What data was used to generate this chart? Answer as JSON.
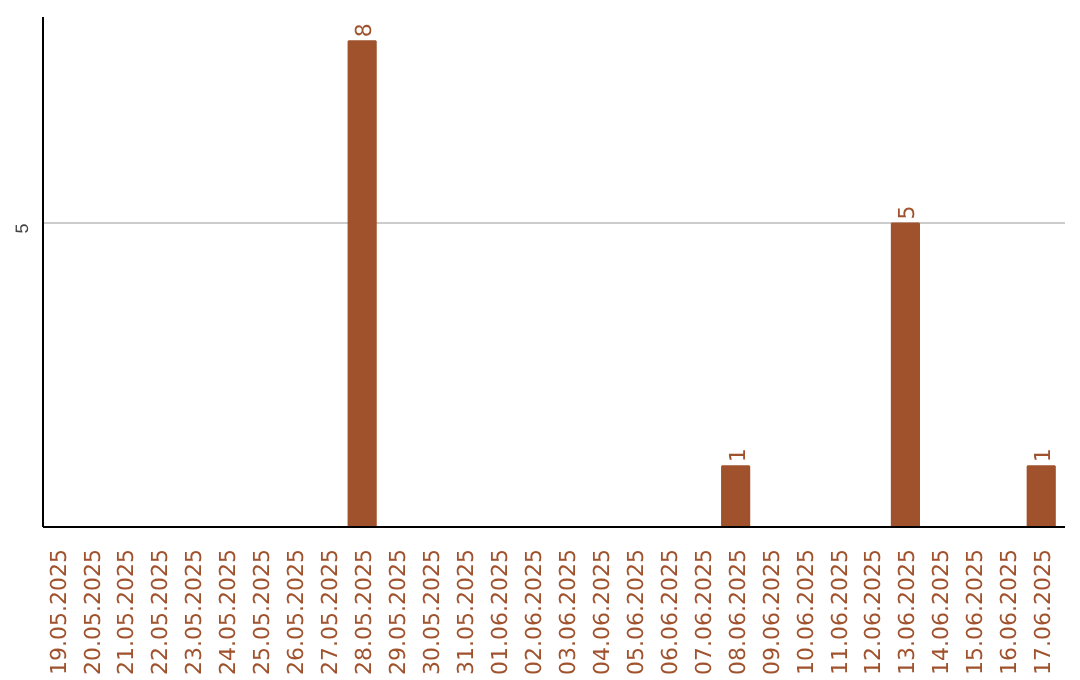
{
  "chart_data": {
    "type": "bar",
    "categories": [
      "19.05.2025",
      "20.05.2025",
      "21.05.2025",
      "22.05.2025",
      "23.05.2025",
      "24.05.2025",
      "25.05.2025",
      "26.05.2025",
      "27.05.2025",
      "28.05.2025",
      "29.05.2025",
      "30.05.2025",
      "31.05.2025",
      "01.06.2025",
      "02.06.2025",
      "03.06.2025",
      "04.06.2025",
      "05.06.2025",
      "06.06.2025",
      "07.06.2025",
      "08.06.2025",
      "09.06.2025",
      "10.06.2025",
      "11.06.2025",
      "12.06.2025",
      "13.06.2025",
      "14.06.2025",
      "15.06.2025",
      "16.06.2025",
      "17.06.2025"
    ],
    "values": [
      0,
      0,
      0,
      0,
      0,
      0,
      0,
      0,
      0,
      8,
      0,
      0,
      0,
      0,
      0,
      0,
      0,
      0,
      0,
      0,
      1,
      0,
      0,
      0,
      0,
      5,
      0,
      0,
      0,
      1
    ],
    "value_labels": [
      null,
      null,
      null,
      null,
      null,
      null,
      null,
      null,
      null,
      "8",
      null,
      null,
      null,
      null,
      null,
      null,
      null,
      null,
      null,
      null,
      "1",
      null,
      null,
      null,
      null,
      "5",
      null,
      null,
      null,
      "1"
    ],
    "color": "#a0522d",
    "ylim": [
      0,
      8.4
    ],
    "yticks": [
      5
    ],
    "grid": "y"
  }
}
